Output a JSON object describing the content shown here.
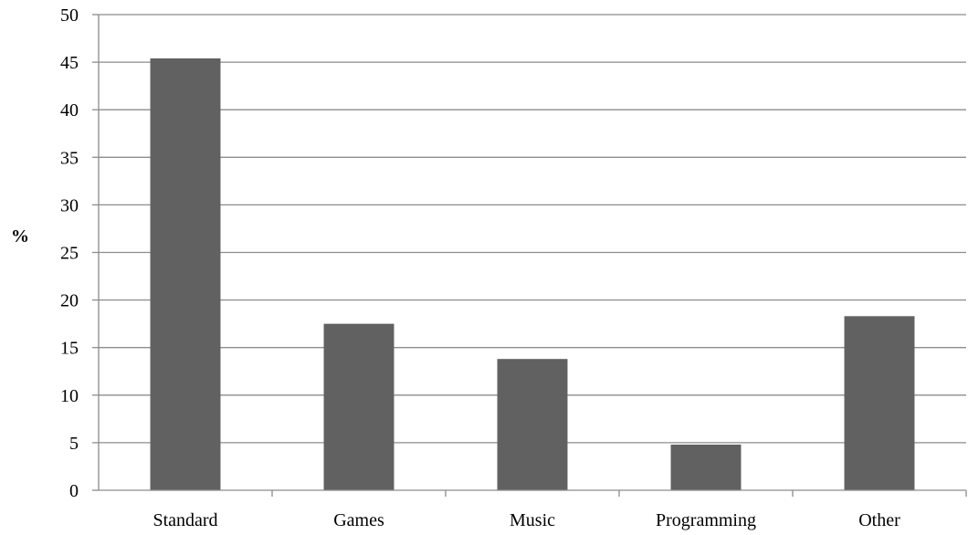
{
  "chart_data": {
    "type": "bar",
    "categories": [
      "Standard",
      "Games",
      "Music",
      "Programming",
      "Other"
    ],
    "values": [
      45.4,
      17.5,
      13.8,
      4.8,
      18.3
    ],
    "ylabel": "%",
    "ylim": [
      0,
      50
    ],
    "y_ticks": [
      0,
      5,
      10,
      15,
      20,
      25,
      30,
      35,
      40,
      45,
      50
    ],
    "grid": true,
    "legend": "none",
    "colors": {
      "bar": "#616161",
      "grid": "#8c8c8c",
      "axis": "#8c8c8c"
    }
  }
}
